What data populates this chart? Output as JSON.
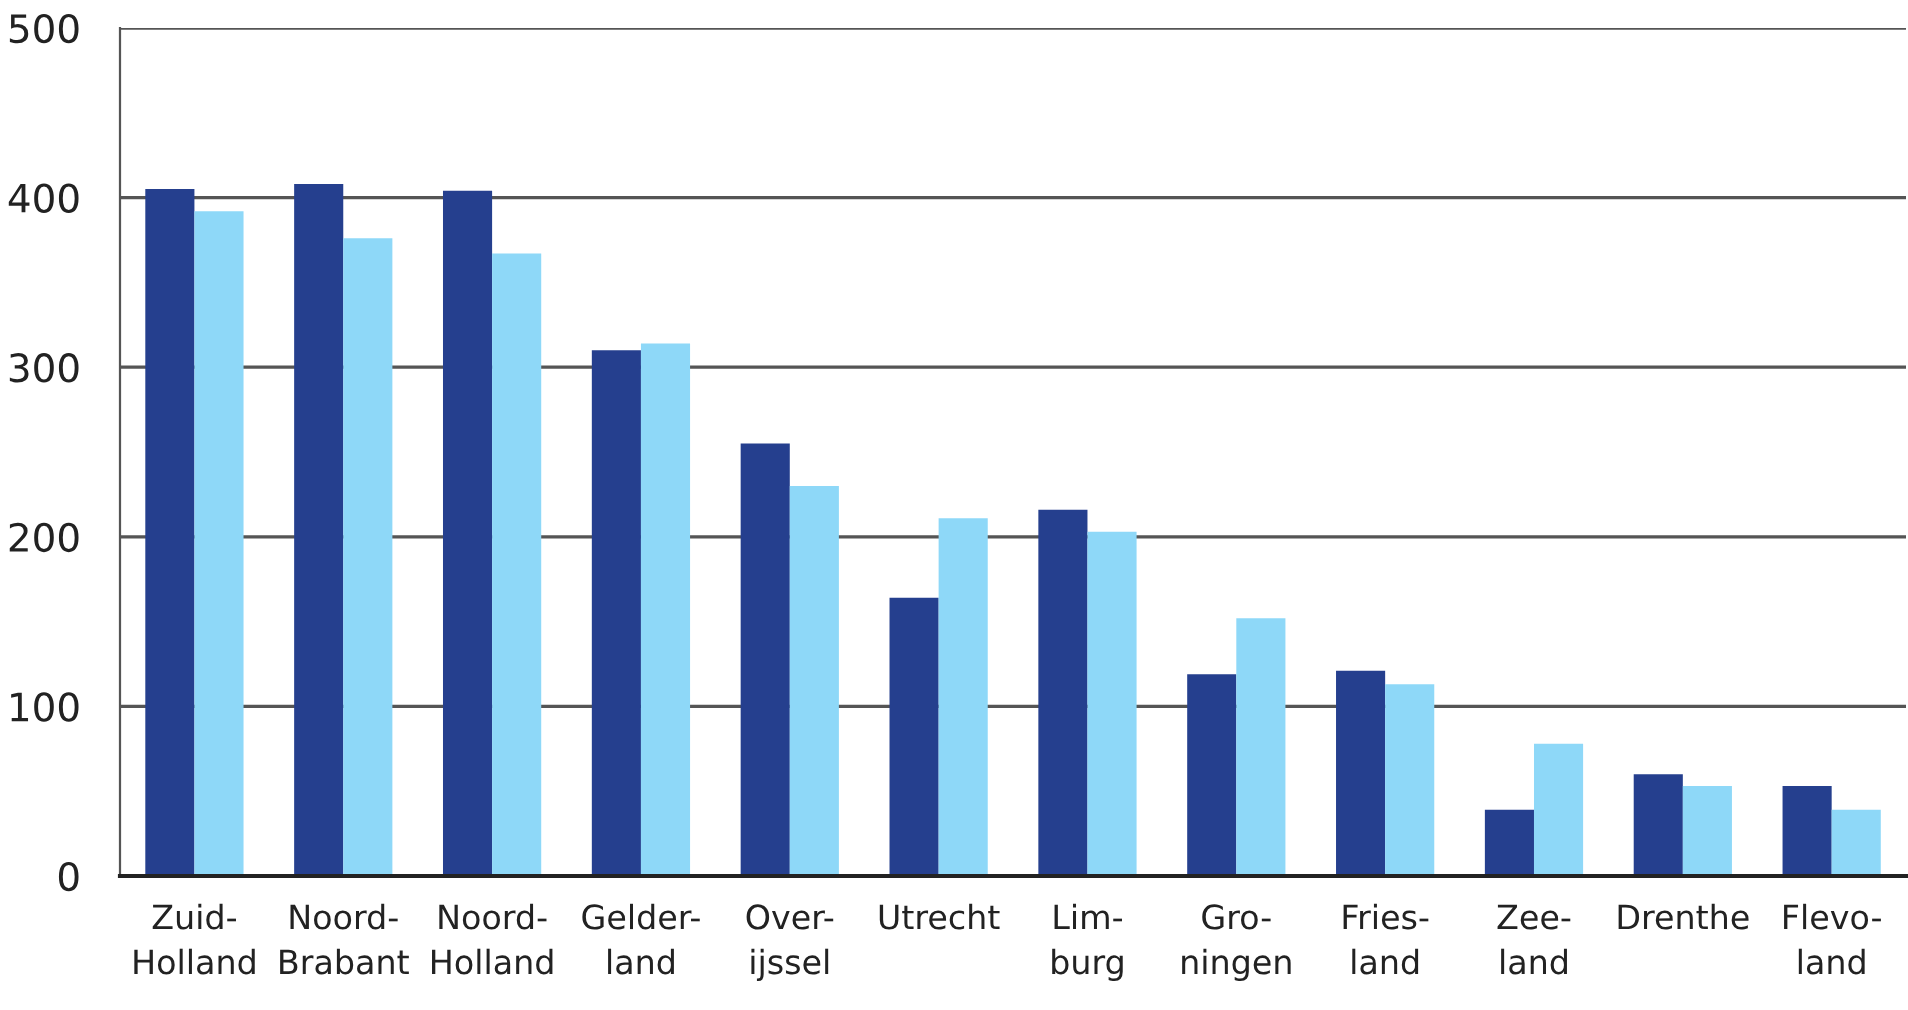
{
  "chart_data": {
    "type": "bar",
    "categories": [
      "Zuid-\nHolland",
      "Noord-\nBrabant",
      "Noord-\nHolland",
      "Gelder-\nland",
      "Over-\nijssel",
      "Utrecht",
      "Lim-\nburg",
      "Gro-\nningen",
      "Fries-\nland",
      "Zee-\nland",
      "Drenthe",
      "Flevo-\nland"
    ],
    "series": [
      {
        "color": "#253f8e",
        "values": [
          405,
          408,
          404,
          310,
          255,
          164,
          216,
          119,
          121,
          39,
          60,
          53
        ]
      },
      {
        "color": "#8ed8f8",
        "values": [
          392,
          376,
          367,
          314,
          230,
          211,
          203,
          152,
          113,
          78,
          53,
          39
        ]
      }
    ],
    "ylim": [
      0,
      500
    ],
    "yticks": [
      0,
      100,
      200,
      300,
      400,
      500
    ],
    "grid": "y",
    "legend": false
  }
}
